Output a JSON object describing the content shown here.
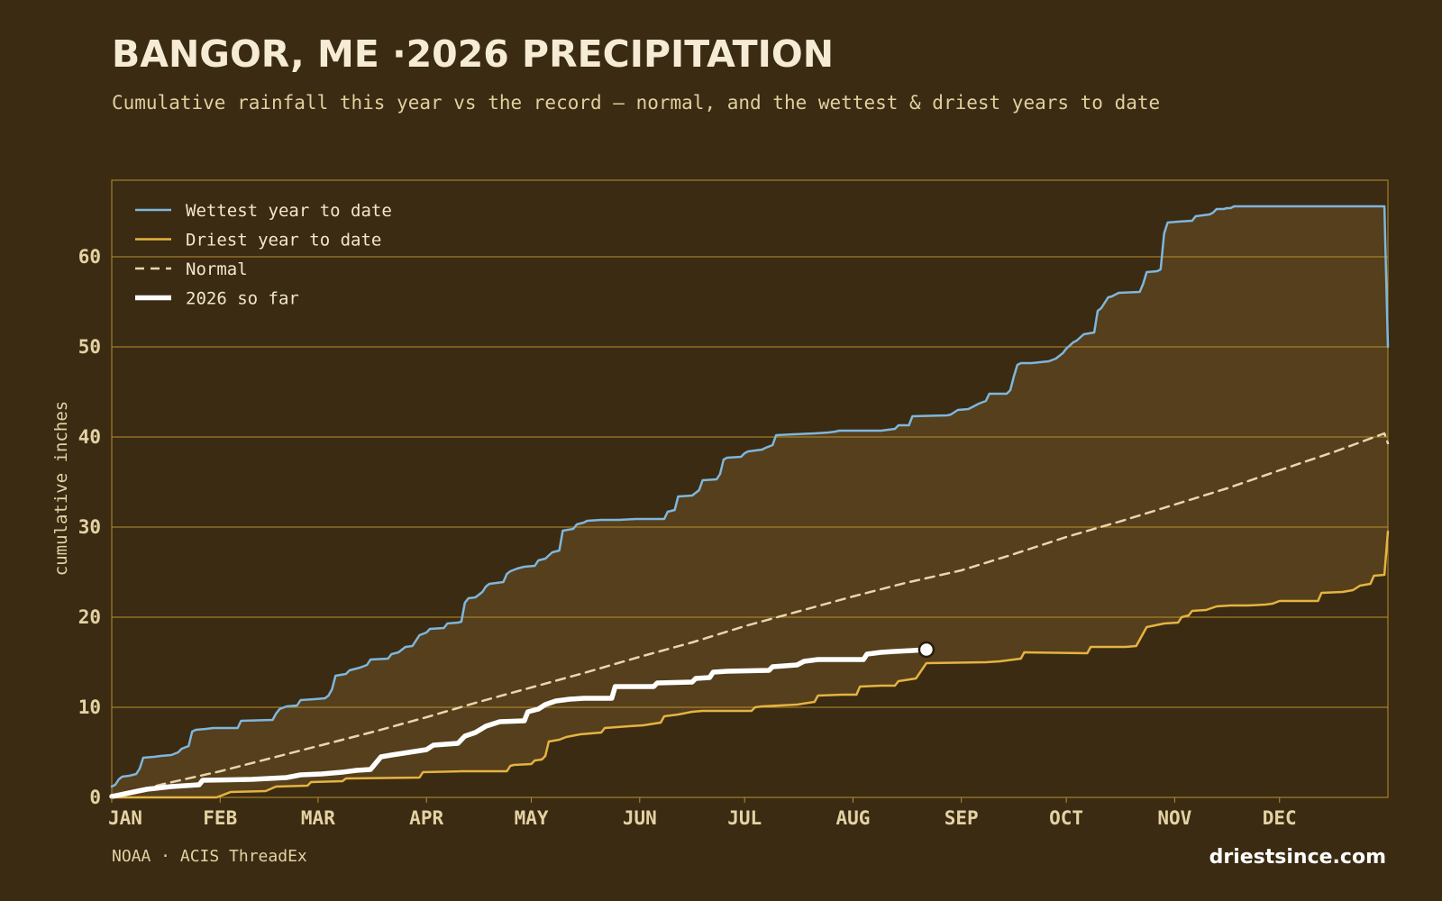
{
  "header": {
    "title": "BANGOR, ME ·2026 PRECIPITATION",
    "subtitle": "Cumulative rainfall this year vs the record — normal, and the wettest & driest years to date"
  },
  "footer": {
    "source": "NOAA · ACIS ThreadEx",
    "brand": "driestsince.com"
  },
  "colors": {
    "background": "#3a2b12",
    "band_fill": "#553f1c",
    "grid": "#b98f2e",
    "wettest": "#7fb6dd",
    "driest": "#e5b341",
    "normal": "#e8d7ae",
    "current": "#ffffff"
  },
  "chart_data": {
    "type": "line",
    "title": "BANGOR, ME ·2026 PRECIPITATION",
    "subtitle": "Cumulative rainfall this year vs the record — normal, and the wettest & driest years to date",
    "xlabel": "",
    "ylabel": "cumulative inches",
    "x_unit": "day of year",
    "xlim": [
      0,
      365
    ],
    "ylim": [
      0,
      68.5
    ],
    "yticks": [
      0,
      10,
      20,
      30,
      40,
      50,
      60
    ],
    "grid": true,
    "legend_position": "top-left",
    "month_ticks": [
      {
        "label": "JAN",
        "day": 0
      },
      {
        "label": "FEB",
        "day": 31
      },
      {
        "label": "MAR",
        "day": 59
      },
      {
        "label": "APR",
        "day": 90
      },
      {
        "label": "MAY",
        "day": 120
      },
      {
        "label": "JUN",
        "day": 151
      },
      {
        "label": "JUL",
        "day": 181
      },
      {
        "label": "AUG",
        "day": 212
      },
      {
        "label": "SEP",
        "day": 243
      },
      {
        "label": "OCT",
        "day": 273
      },
      {
        "label": "NOV",
        "day": 304
      },
      {
        "label": "DEC",
        "day": 334
      }
    ],
    "series": [
      {
        "name": "Wettest year to date",
        "style": "solid",
        "points": [
          [
            0,
            1.2
          ],
          [
            1,
            1.4
          ],
          [
            2,
            2.0
          ],
          [
            3,
            2.3
          ],
          [
            5,
            2.4
          ],
          [
            7,
            2.6
          ],
          [
            8,
            3.2
          ],
          [
            9,
            4.4
          ],
          [
            12,
            4.5
          ],
          [
            14,
            4.6
          ],
          [
            17,
            4.7
          ],
          [
            19,
            5.0
          ],
          [
            20,
            5.4
          ],
          [
            22,
            5.7
          ],
          [
            23,
            7.3
          ],
          [
            24,
            7.5
          ],
          [
            27,
            7.6
          ],
          [
            29,
            7.7
          ],
          [
            36,
            7.7
          ],
          [
            37,
            8.5
          ],
          [
            46,
            8.6
          ],
          [
            47,
            9.3
          ],
          [
            48,
            9.8
          ],
          [
            50,
            10.1
          ],
          [
            53,
            10.2
          ],
          [
            54,
            10.8
          ],
          [
            58,
            10.9
          ],
          [
            61,
            11.0
          ],
          [
            62,
            11.3
          ],
          [
            63,
            12.0
          ],
          [
            64,
            13.5
          ],
          [
            67,
            13.7
          ],
          [
            68,
            14.1
          ],
          [
            71,
            14.4
          ],
          [
            73,
            14.7
          ],
          [
            74,
            15.3
          ],
          [
            79,
            15.4
          ],
          [
            80,
            15.9
          ],
          [
            82,
            16.1
          ],
          [
            84,
            16.7
          ],
          [
            86,
            16.8
          ],
          [
            87,
            17.4
          ],
          [
            88,
            18.0
          ],
          [
            90,
            18.3
          ],
          [
            91,
            18.7
          ],
          [
            95,
            18.8
          ],
          [
            96,
            19.3
          ],
          [
            99,
            19.4
          ],
          [
            100,
            19.5
          ],
          [
            101,
            21.6
          ],
          [
            102,
            22.1
          ],
          [
            104,
            22.2
          ],
          [
            106,
            22.8
          ],
          [
            107,
            23.4
          ],
          [
            108,
            23.7
          ],
          [
            112,
            23.9
          ],
          [
            113,
            24.8
          ],
          [
            114,
            25.1
          ],
          [
            116,
            25.4
          ],
          [
            118,
            25.6
          ],
          [
            121,
            25.7
          ],
          [
            122,
            26.3
          ],
          [
            124,
            26.5
          ],
          [
            126,
            27.2
          ],
          [
            128,
            27.4
          ],
          [
            129,
            29.6
          ],
          [
            132,
            29.8
          ],
          [
            133,
            30.3
          ],
          [
            135,
            30.5
          ],
          [
            136,
            30.7
          ],
          [
            140,
            30.8
          ],
          [
            145,
            30.8
          ],
          [
            150,
            30.9
          ],
          [
            158,
            30.9
          ],
          [
            159,
            31.7
          ],
          [
            161,
            31.9
          ],
          [
            162,
            33.4
          ],
          [
            166,
            33.5
          ],
          [
            168,
            34.1
          ],
          [
            169,
            35.2
          ],
          [
            173,
            35.3
          ],
          [
            174,
            35.9
          ],
          [
            175,
            37.5
          ],
          [
            176,
            37.7
          ],
          [
            180,
            37.8
          ],
          [
            181,
            38.2
          ],
          [
            182,
            38.4
          ],
          [
            186,
            38.6
          ],
          [
            187,
            38.8
          ],
          [
            189,
            39.1
          ],
          [
            190,
            40.2
          ],
          [
            195,
            40.3
          ],
          [
            201,
            40.4
          ],
          [
            205,
            40.5
          ],
          [
            207,
            40.6
          ],
          [
            208,
            40.7
          ],
          [
            220,
            40.7
          ],
          [
            224,
            40.9
          ],
          [
            225,
            41.3
          ],
          [
            228,
            41.3
          ],
          [
            229,
            42.3
          ],
          [
            239,
            42.4
          ],
          [
            240,
            42.5
          ],
          [
            242,
            43.0
          ],
          [
            245,
            43.1
          ],
          [
            248,
            43.7
          ],
          [
            250,
            44.0
          ],
          [
            251,
            44.8
          ],
          [
            256,
            44.8
          ],
          [
            257,
            45.2
          ],
          [
            258,
            46.7
          ],
          [
            259,
            48.0
          ],
          [
            260,
            48.2
          ],
          [
            263,
            48.2
          ],
          [
            268,
            48.4
          ],
          [
            270,
            48.7
          ],
          [
            272,
            49.3
          ],
          [
            273,
            49.8
          ],
          [
            275,
            50.5
          ],
          [
            276,
            50.7
          ],
          [
            278,
            51.4
          ],
          [
            281,
            51.6
          ],
          [
            282,
            54.0
          ],
          [
            283,
            54.3
          ],
          [
            285,
            55.5
          ],
          [
            286,
            55.6
          ],
          [
            288,
            56.0
          ],
          [
            294,
            56.1
          ],
          [
            295,
            57.0
          ],
          [
            296,
            58.3
          ],
          [
            299,
            58.4
          ],
          [
            300,
            58.6
          ],
          [
            301,
            62.6
          ],
          [
            302,
            63.8
          ],
          [
            305,
            63.9
          ],
          [
            309,
            64.0
          ],
          [
            310,
            64.5
          ],
          [
            314,
            64.7
          ],
          [
            315,
            64.9
          ],
          [
            316,
            65.3
          ],
          [
            318,
            65.3
          ],
          [
            319,
            65.4
          ],
          [
            320,
            65.4
          ],
          [
            321,
            65.6
          ],
          [
            364,
            65.6
          ],
          [
            365,
            50.0
          ]
        ]
      },
      {
        "name": "Driest year to date",
        "style": "solid",
        "points": [
          [
            0,
            0.0
          ],
          [
            30,
            0.0
          ],
          [
            34,
            0.6
          ],
          [
            44,
            0.7
          ],
          [
            47,
            1.2
          ],
          [
            56,
            1.3
          ],
          [
            57,
            1.7
          ],
          [
            66,
            1.8
          ],
          [
            67,
            2.1
          ],
          [
            88,
            2.2
          ],
          [
            89,
            2.8
          ],
          [
            100,
            2.9
          ],
          [
            113,
            2.9
          ],
          [
            114,
            3.5
          ],
          [
            115,
            3.6
          ],
          [
            120,
            3.7
          ],
          [
            121,
            4.1
          ],
          [
            123,
            4.2
          ],
          [
            124,
            4.6
          ],
          [
            125,
            6.2
          ],
          [
            128,
            6.4
          ],
          [
            130,
            6.7
          ],
          [
            134,
            7.0
          ],
          [
            140,
            7.2
          ],
          [
            141,
            7.7
          ],
          [
            148,
            7.9
          ],
          [
            152,
            8.0
          ],
          [
            157,
            8.3
          ],
          [
            158,
            9.0
          ],
          [
            162,
            9.2
          ],
          [
            166,
            9.5
          ],
          [
            169,
            9.6
          ],
          [
            183,
            9.6
          ],
          [
            184,
            10.0
          ],
          [
            186,
            10.1
          ],
          [
            191,
            10.2
          ],
          [
            196,
            10.3
          ],
          [
            201,
            10.6
          ],
          [
            202,
            11.3
          ],
          [
            209,
            11.4
          ],
          [
            213,
            11.4
          ],
          [
            214,
            12.3
          ],
          [
            220,
            12.4
          ],
          [
            224,
            12.4
          ],
          [
            225,
            12.9
          ],
          [
            230,
            13.2
          ],
          [
            233,
            14.9
          ],
          [
            250,
            15.0
          ],
          [
            254,
            15.1
          ],
          [
            260,
            15.4
          ],
          [
            261,
            16.1
          ],
          [
            279,
            16.0
          ],
          [
            280,
            16.7
          ],
          [
            290,
            16.7
          ],
          [
            293,
            16.8
          ],
          [
            296,
            18.9
          ],
          [
            301,
            19.3
          ],
          [
            305,
            19.4
          ],
          [
            306,
            20.0
          ],
          [
            308,
            20.2
          ],
          [
            309,
            20.7
          ],
          [
            313,
            20.8
          ],
          [
            316,
            21.2
          ],
          [
            320,
            21.3
          ],
          [
            325,
            21.3
          ],
          [
            330,
            21.4
          ],
          [
            332,
            21.5
          ],
          [
            334,
            21.8
          ],
          [
            345,
            21.8
          ],
          [
            346,
            22.7
          ],
          [
            352,
            22.8
          ],
          [
            355,
            23.0
          ],
          [
            357,
            23.5
          ],
          [
            360,
            23.7
          ],
          [
            361,
            24.6
          ],
          [
            364,
            24.7
          ],
          [
            365,
            29.5
          ]
        ]
      },
      {
        "name": "Normal",
        "style": "dashed",
        "points": [
          [
            0,
            0.0
          ],
          [
            15,
            1.5
          ],
          [
            31,
            2.9
          ],
          [
            45,
            4.3
          ],
          [
            59,
            5.7
          ],
          [
            75,
            7.3
          ],
          [
            90,
            8.9
          ],
          [
            105,
            10.6
          ],
          [
            120,
            12.2
          ],
          [
            135,
            13.8
          ],
          [
            151,
            15.6
          ],
          [
            166,
            17.2
          ],
          [
            181,
            19.0
          ],
          [
            196,
            20.6
          ],
          [
            212,
            22.3
          ],
          [
            227,
            23.8
          ],
          [
            243,
            25.2
          ],
          [
            258,
            27.0
          ],
          [
            273,
            28.9
          ],
          [
            289,
            30.7
          ],
          [
            304,
            32.5
          ],
          [
            319,
            34.3
          ],
          [
            334,
            36.3
          ],
          [
            350,
            38.4
          ],
          [
            364,
            40.4
          ],
          [
            365,
            39.3
          ]
        ]
      },
      {
        "name": "2026 so far",
        "style": "bold",
        "points": [
          [
            0,
            0.1
          ],
          [
            5,
            0.5
          ],
          [
            10,
            0.9
          ],
          [
            17,
            1.2
          ],
          [
            25,
            1.4
          ],
          [
            26,
            1.9
          ],
          [
            40,
            2.0
          ],
          [
            50,
            2.2
          ],
          [
            54,
            2.5
          ],
          [
            60,
            2.6
          ],
          [
            66,
            2.8
          ],
          [
            70,
            3.0
          ],
          [
            74,
            3.1
          ],
          [
            77,
            4.5
          ],
          [
            80,
            4.7
          ],
          [
            85,
            5.0
          ],
          [
            90,
            5.3
          ],
          [
            92,
            5.8
          ],
          [
            99,
            6.0
          ],
          [
            101,
            6.8
          ],
          [
            104,
            7.2
          ],
          [
            107,
            7.9
          ],
          [
            111,
            8.4
          ],
          [
            118,
            8.5
          ],
          [
            119,
            9.5
          ],
          [
            122,
            9.8
          ],
          [
            124,
            10.3
          ],
          [
            127,
            10.7
          ],
          [
            131,
            10.9
          ],
          [
            135,
            11.0
          ],
          [
            143,
            11.0
          ],
          [
            144,
            12.3
          ],
          [
            155,
            12.3
          ],
          [
            156,
            12.7
          ],
          [
            166,
            12.8
          ],
          [
            167,
            13.2
          ],
          [
            171,
            13.3
          ],
          [
            172,
            13.9
          ],
          [
            176,
            14.0
          ],
          [
            188,
            14.1
          ],
          [
            189,
            14.5
          ],
          [
            196,
            14.7
          ],
          [
            198,
            15.1
          ],
          [
            202,
            15.3
          ],
          [
            215,
            15.3
          ],
          [
            216,
            15.9
          ],
          [
            220,
            16.1
          ],
          [
            224,
            16.2
          ],
          [
            229,
            16.3
          ],
          [
            233,
            16.4
          ]
        ]
      }
    ],
    "current_marker": {
      "day": 233,
      "value": 16.4
    }
  }
}
